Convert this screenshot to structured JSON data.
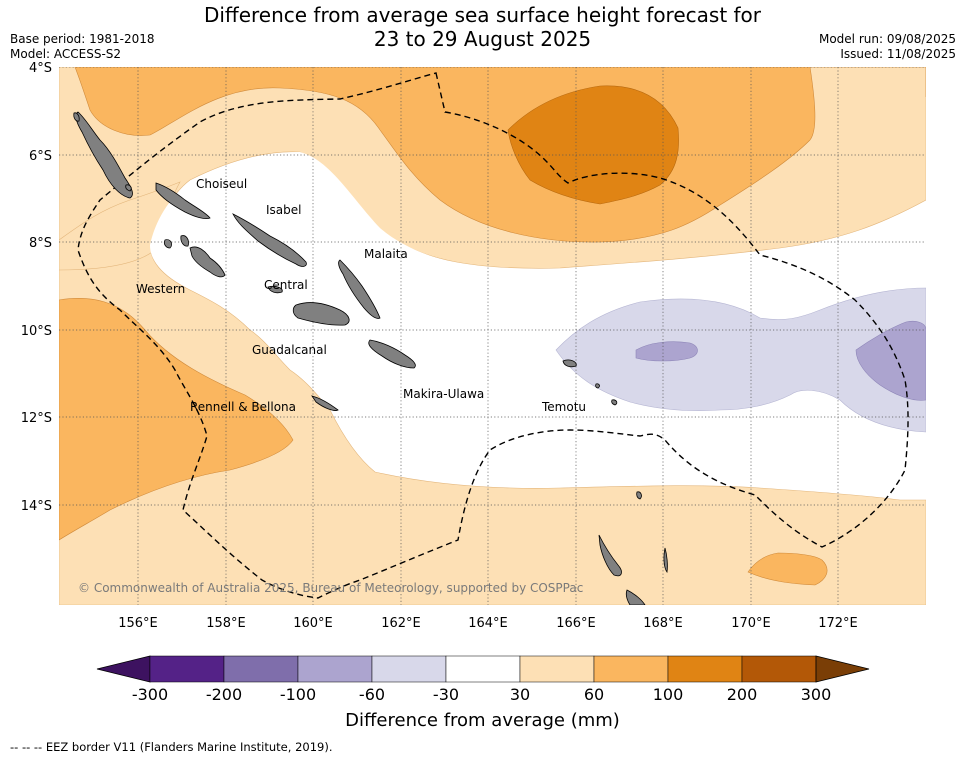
{
  "title": {
    "line1": "Difference from average sea surface height forecast for",
    "line2": "23 to 29 August 2025"
  },
  "meta_left": {
    "base_period": "Base period: 1981-2018",
    "model": "Model: ACCESS-S2"
  },
  "meta_right": {
    "model_run": "Model run: 09/08/2025",
    "issued": "Issued: 11/08/2025"
  },
  "map": {
    "lat_labels": [
      "4°S",
      "6°S",
      "8°S",
      "10°S",
      "12°S",
      "14°S"
    ],
    "lon_labels": [
      "156°E",
      "158°E",
      "160°E",
      "162°E",
      "164°E",
      "166°E",
      "168°E",
      "170°E",
      "172°E"
    ],
    "regions": {
      "choiseul": "Choiseul",
      "isabel": "Isabel",
      "malaita": "Malaita",
      "western": "Western",
      "central": "Central",
      "guadalcanal": "Guadalcanal",
      "makira_ulawa": "Makira-Ulawa",
      "temotu": "Temotu",
      "rennell_bellona": "Rennell & Bellona"
    },
    "copyright": "© Commonwealth of Australia 2025, Bureau of Meteorology, supported by COSPPac"
  },
  "colorbar": {
    "ticks": [
      "-300",
      "-200",
      "-100",
      "-60",
      "-30",
      "30",
      "60",
      "100",
      "200",
      "300"
    ],
    "colors": [
      "#3d1260",
      "#542287",
      "#7f6eab",
      "#aca4cf",
      "#d8d8ea",
      "#ffffff",
      "#fde0b5",
      "#fab65f",
      "#e08414",
      "#b35807",
      "#7a3e06"
    ],
    "label": "Difference from average (mm)"
  },
  "footer": "--  --  -- EEZ border V11 (Flanders Marine Institute, 2019)."
}
